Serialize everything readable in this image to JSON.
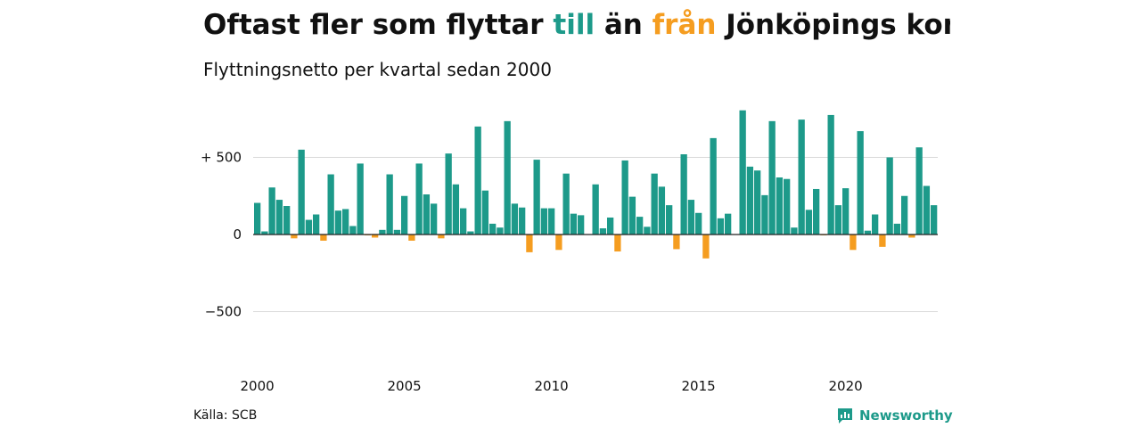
{
  "title": {
    "part1": "Oftast fler som flyttar ",
    "highlight_pos": "till",
    "part2": " än ",
    "highlight_neg": "från",
    "part3": " Jönköpings kommun"
  },
  "subtitle": "Flyttningsnetto per kvartal sedan 2000",
  "source": "Källa: SCB",
  "brand": "Newsworthy",
  "colors": {
    "positive": "#1d9a8a",
    "negative": "#f59d20",
    "grid": "#d9d9d9"
  },
  "chart_data": {
    "type": "bar",
    "x_start": "2000 Q1",
    "y_tick_labels": [
      {
        "value": 500,
        "label": "+ 500"
      },
      {
        "value": 0,
        "label": "0"
      },
      {
        "value": -500,
        "label": "−500"
      }
    ],
    "x_tick_labels": [
      "2000",
      "2005",
      "2010",
      "2015",
      "2020"
    ],
    "x_tick_years": [
      2000,
      2005,
      2010,
      2015,
      2020
    ],
    "ylim": [
      -730,
      820
    ],
    "grid": true,
    "values": [
      205,
      20,
      305,
      225,
      185,
      -25,
      550,
      95,
      130,
      -40,
      390,
      155,
      165,
      55,
      460,
      -5,
      -20,
      30,
      390,
      30,
      250,
      -40,
      460,
      260,
      200,
      -25,
      525,
      325,
      170,
      20,
      700,
      285,
      70,
      45,
      735,
      200,
      175,
      -115,
      485,
      170,
      170,
      -100,
      395,
      135,
      125,
      0,
      325,
      40,
      110,
      -110,
      480,
      245,
      115,
      50,
      395,
      310,
      190,
      -95,
      520,
      225,
      140,
      -155,
      625,
      105,
      135,
      0,
      805,
      440,
      415,
      255,
      735,
      370,
      360,
      45,
      745,
      160,
      295,
      -5,
      775,
      190,
      300,
      -100,
      670,
      25,
      130,
      -80,
      500,
      70,
      250,
      -20,
      565,
      315,
      190
    ]
  }
}
